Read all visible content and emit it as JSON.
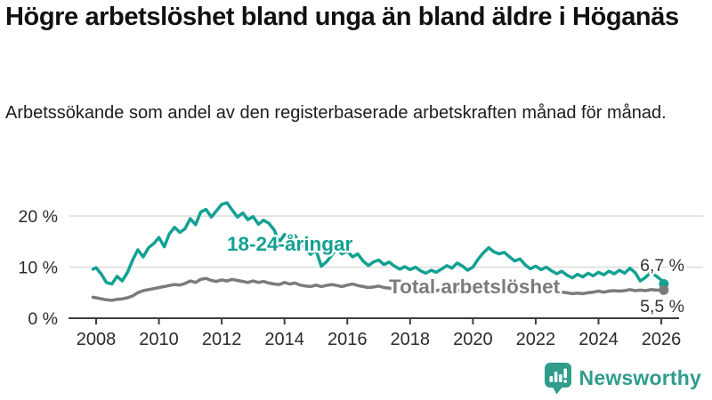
{
  "header": {
    "title": "Högre arbetslöshet bland unga än bland äldre i Höganäs",
    "subtitle": "Arbetssökande som andel av den registerbaserade arbetskraften månad för månad."
  },
  "branding": {
    "logo_text": "Newsworthy",
    "logo_icon": "bar-chart-speech-bubble"
  },
  "colors": {
    "young_series": "#12a192",
    "total_series": "#7b7b7b",
    "gridline": "#dedede",
    "axis": "#3d3d3d",
    "tick_label": "#2b2b2b",
    "end_label": "#333333",
    "title_text": "#111111",
    "logo_teal": "#2f9c8c",
    "background": "#ffffff"
  },
  "chart_data": {
    "type": "line",
    "title": "Högre arbetslöshet bland unga än bland äldre i Höganäs",
    "xlabel": "",
    "ylabel": "",
    "unit": "%",
    "grid": "horizontal",
    "legend": "inline-labels",
    "ylim": [
      0,
      24
    ],
    "xlim": [
      2007.9,
      2026.6
    ],
    "x_ticks": [
      "2008",
      "2010",
      "2012",
      "2014",
      "2016",
      "2018",
      "2020",
      "2022",
      "2024",
      "2026"
    ],
    "y_ticks": [
      {
        "value": 0,
        "label": "0 %"
      },
      {
        "value": 10,
        "label": "10 %"
      },
      {
        "value": 20,
        "label": "20 %"
      }
    ],
    "series": [
      {
        "name": "18-24-åringar",
        "color": "#12a192",
        "end_label": "6,7 %",
        "end_value": 6.7,
        "points": [
          [
            2007.9,
            9.6
          ],
          [
            2008.0,
            9.9
          ],
          [
            2008.17,
            8.6
          ],
          [
            2008.33,
            7.0
          ],
          [
            2008.5,
            6.7
          ],
          [
            2008.67,
            8.2
          ],
          [
            2008.83,
            7.3
          ],
          [
            2009.0,
            9.0
          ],
          [
            2009.17,
            11.5
          ],
          [
            2009.33,
            13.4
          ],
          [
            2009.5,
            12.0
          ],
          [
            2009.67,
            13.8
          ],
          [
            2009.83,
            14.6
          ],
          [
            2010.0,
            15.8
          ],
          [
            2010.17,
            14.0
          ],
          [
            2010.33,
            16.5
          ],
          [
            2010.5,
            17.8
          ],
          [
            2010.67,
            16.8
          ],
          [
            2010.83,
            17.5
          ],
          [
            2011.0,
            19.5
          ],
          [
            2011.17,
            18.3
          ],
          [
            2011.33,
            20.8
          ],
          [
            2011.5,
            21.3
          ],
          [
            2011.67,
            19.8
          ],
          [
            2011.83,
            21.0
          ],
          [
            2012.0,
            22.3
          ],
          [
            2012.17,
            22.6
          ],
          [
            2012.33,
            21.2
          ],
          [
            2012.5,
            19.8
          ],
          [
            2012.67,
            20.6
          ],
          [
            2012.83,
            19.3
          ],
          [
            2013.0,
            19.9
          ],
          [
            2013.17,
            18.4
          ],
          [
            2013.33,
            19.2
          ],
          [
            2013.5,
            18.6
          ],
          [
            2013.67,
            17.3
          ],
          [
            2013.83,
            14.9
          ],
          [
            2014.0,
            16.4
          ],
          [
            2014.17,
            15.7
          ],
          [
            2014.33,
            16.2
          ],
          [
            2014.5,
            14.8
          ],
          [
            2014.67,
            13.6
          ],
          [
            2014.83,
            12.5
          ],
          [
            2015.0,
            13.4
          ],
          [
            2015.17,
            10.2
          ],
          [
            2015.33,
            11.0
          ],
          [
            2015.5,
            12.3
          ],
          [
            2015.67,
            13.6
          ],
          [
            2015.83,
            12.6
          ],
          [
            2016.0,
            13.1
          ],
          [
            2016.17,
            12.0
          ],
          [
            2016.33,
            12.6
          ],
          [
            2016.5,
            11.2
          ],
          [
            2016.67,
            10.3
          ],
          [
            2016.83,
            11.0
          ],
          [
            2017.0,
            11.4
          ],
          [
            2017.17,
            10.5
          ],
          [
            2017.33,
            11.0
          ],
          [
            2017.5,
            10.2
          ],
          [
            2017.67,
            9.6
          ],
          [
            2017.83,
            10.1
          ],
          [
            2018.0,
            9.5
          ],
          [
            2018.17,
            10.0
          ],
          [
            2018.33,
            9.3
          ],
          [
            2018.5,
            8.8
          ],
          [
            2018.67,
            9.4
          ],
          [
            2018.83,
            9.0
          ],
          [
            2019.0,
            9.6
          ],
          [
            2019.17,
            10.3
          ],
          [
            2019.33,
            9.8
          ],
          [
            2019.5,
            10.8
          ],
          [
            2019.67,
            10.2
          ],
          [
            2019.83,
            9.4
          ],
          [
            2020.0,
            10.0
          ],
          [
            2020.17,
            11.6
          ],
          [
            2020.33,
            12.8
          ],
          [
            2020.5,
            13.8
          ],
          [
            2020.67,
            13.0
          ],
          [
            2020.83,
            12.6
          ],
          [
            2021.0,
            12.9
          ],
          [
            2021.17,
            12.0
          ],
          [
            2021.33,
            11.2
          ],
          [
            2021.5,
            11.6
          ],
          [
            2021.67,
            10.4
          ],
          [
            2021.83,
            9.7
          ],
          [
            2022.0,
            10.2
          ],
          [
            2022.17,
            9.5
          ],
          [
            2022.33,
            10.0
          ],
          [
            2022.5,
            9.3
          ],
          [
            2022.67,
            8.7
          ],
          [
            2022.83,
            9.2
          ],
          [
            2023.0,
            8.4
          ],
          [
            2023.17,
            7.9
          ],
          [
            2023.33,
            8.6
          ],
          [
            2023.5,
            8.1
          ],
          [
            2023.67,
            8.8
          ],
          [
            2023.83,
            8.3
          ],
          [
            2024.0,
            9.0
          ],
          [
            2024.17,
            8.5
          ],
          [
            2024.33,
            9.2
          ],
          [
            2024.5,
            8.7
          ],
          [
            2024.67,
            9.4
          ],
          [
            2024.83,
            8.8
          ],
          [
            2025.0,
            9.8
          ],
          [
            2025.17,
            8.9
          ],
          [
            2025.33,
            7.3
          ],
          [
            2025.5,
            8.0
          ],
          [
            2025.67,
            9.0
          ],
          [
            2025.83,
            8.3
          ],
          [
            2026.0,
            7.5
          ],
          [
            2026.08,
            6.7
          ]
        ]
      },
      {
        "name": "Total arbetslöshet",
        "color": "#7b7b7b",
        "end_label": "5,5 %",
        "end_value": 5.5,
        "points": [
          [
            2007.9,
            4.1
          ],
          [
            2008.0,
            4.0
          ],
          [
            2008.17,
            3.8
          ],
          [
            2008.33,
            3.6
          ],
          [
            2008.5,
            3.5
          ],
          [
            2008.67,
            3.7
          ],
          [
            2008.83,
            3.8
          ],
          [
            2009.0,
            4.0
          ],
          [
            2009.17,
            4.4
          ],
          [
            2009.33,
            5.0
          ],
          [
            2009.5,
            5.4
          ],
          [
            2009.67,
            5.6
          ],
          [
            2009.83,
            5.8
          ],
          [
            2010.0,
            6.0
          ],
          [
            2010.17,
            6.2
          ],
          [
            2010.33,
            6.4
          ],
          [
            2010.5,
            6.6
          ],
          [
            2010.67,
            6.5
          ],
          [
            2010.83,
            6.8
          ],
          [
            2011.0,
            7.3
          ],
          [
            2011.17,
            7.0
          ],
          [
            2011.33,
            7.6
          ],
          [
            2011.5,
            7.8
          ],
          [
            2011.67,
            7.4
          ],
          [
            2011.83,
            7.2
          ],
          [
            2012.0,
            7.5
          ],
          [
            2012.17,
            7.3
          ],
          [
            2012.33,
            7.6
          ],
          [
            2012.5,
            7.4
          ],
          [
            2012.67,
            7.2
          ],
          [
            2012.83,
            7.0
          ],
          [
            2013.0,
            7.3
          ],
          [
            2013.17,
            7.0
          ],
          [
            2013.33,
            7.2
          ],
          [
            2013.5,
            6.9
          ],
          [
            2013.67,
            6.7
          ],
          [
            2013.83,
            6.6
          ],
          [
            2014.0,
            7.0
          ],
          [
            2014.17,
            6.7
          ],
          [
            2014.33,
            6.9
          ],
          [
            2014.5,
            6.5
          ],
          [
            2014.67,
            6.3
          ],
          [
            2014.83,
            6.2
          ],
          [
            2015.0,
            6.5
          ],
          [
            2015.17,
            6.2
          ],
          [
            2015.33,
            6.4
          ],
          [
            2015.5,
            6.6
          ],
          [
            2015.67,
            6.4
          ],
          [
            2015.83,
            6.2
          ],
          [
            2016.0,
            6.5
          ],
          [
            2016.17,
            6.7
          ],
          [
            2016.33,
            6.4
          ],
          [
            2016.5,
            6.2
          ],
          [
            2016.67,
            6.0
          ],
          [
            2016.83,
            6.1
          ],
          [
            2017.0,
            6.3
          ],
          [
            2017.17,
            6.0
          ],
          [
            2017.33,
            5.9
          ],
          [
            2017.5,
            5.7
          ],
          [
            2017.67,
            5.6
          ],
          [
            2017.83,
            5.7
          ],
          [
            2018.0,
            5.9
          ],
          [
            2018.17,
            5.7
          ],
          [
            2018.33,
            5.5
          ],
          [
            2018.5,
            5.4
          ],
          [
            2018.67,
            5.5
          ],
          [
            2018.83,
            5.4
          ],
          [
            2019.0,
            5.6
          ],
          [
            2019.17,
            5.4
          ],
          [
            2019.33,
            5.3
          ],
          [
            2019.5,
            5.5
          ],
          [
            2019.67,
            5.4
          ],
          [
            2019.83,
            5.5
          ],
          [
            2020.0,
            5.7
          ],
          [
            2020.17,
            6.2
          ],
          [
            2020.33,
            6.6
          ],
          [
            2020.5,
            6.8
          ],
          [
            2020.67,
            6.6
          ],
          [
            2020.83,
            6.4
          ],
          [
            2021.0,
            6.5
          ],
          [
            2021.17,
            6.3
          ],
          [
            2021.33,
            6.1
          ],
          [
            2021.5,
            5.9
          ],
          [
            2021.67,
            5.7
          ],
          [
            2021.83,
            5.5
          ],
          [
            2022.0,
            5.6
          ],
          [
            2022.17,
            5.4
          ],
          [
            2022.33,
            5.3
          ],
          [
            2022.5,
            5.2
          ],
          [
            2022.67,
            5.0
          ],
          [
            2022.83,
            5.1
          ],
          [
            2023.0,
            5.0
          ],
          [
            2023.17,
            4.8
          ],
          [
            2023.33,
            4.9
          ],
          [
            2023.5,
            4.8
          ],
          [
            2023.67,
            5.0
          ],
          [
            2023.83,
            5.1
          ],
          [
            2024.0,
            5.3
          ],
          [
            2024.17,
            5.1
          ],
          [
            2024.33,
            5.3
          ],
          [
            2024.5,
            5.4
          ],
          [
            2024.67,
            5.3
          ],
          [
            2024.83,
            5.4
          ],
          [
            2025.0,
            5.6
          ],
          [
            2025.17,
            5.4
          ],
          [
            2025.33,
            5.5
          ],
          [
            2025.5,
            5.4
          ],
          [
            2025.67,
            5.6
          ],
          [
            2025.83,
            5.5
          ],
          [
            2026.0,
            5.5
          ],
          [
            2026.08,
            5.5
          ]
        ]
      }
    ]
  }
}
